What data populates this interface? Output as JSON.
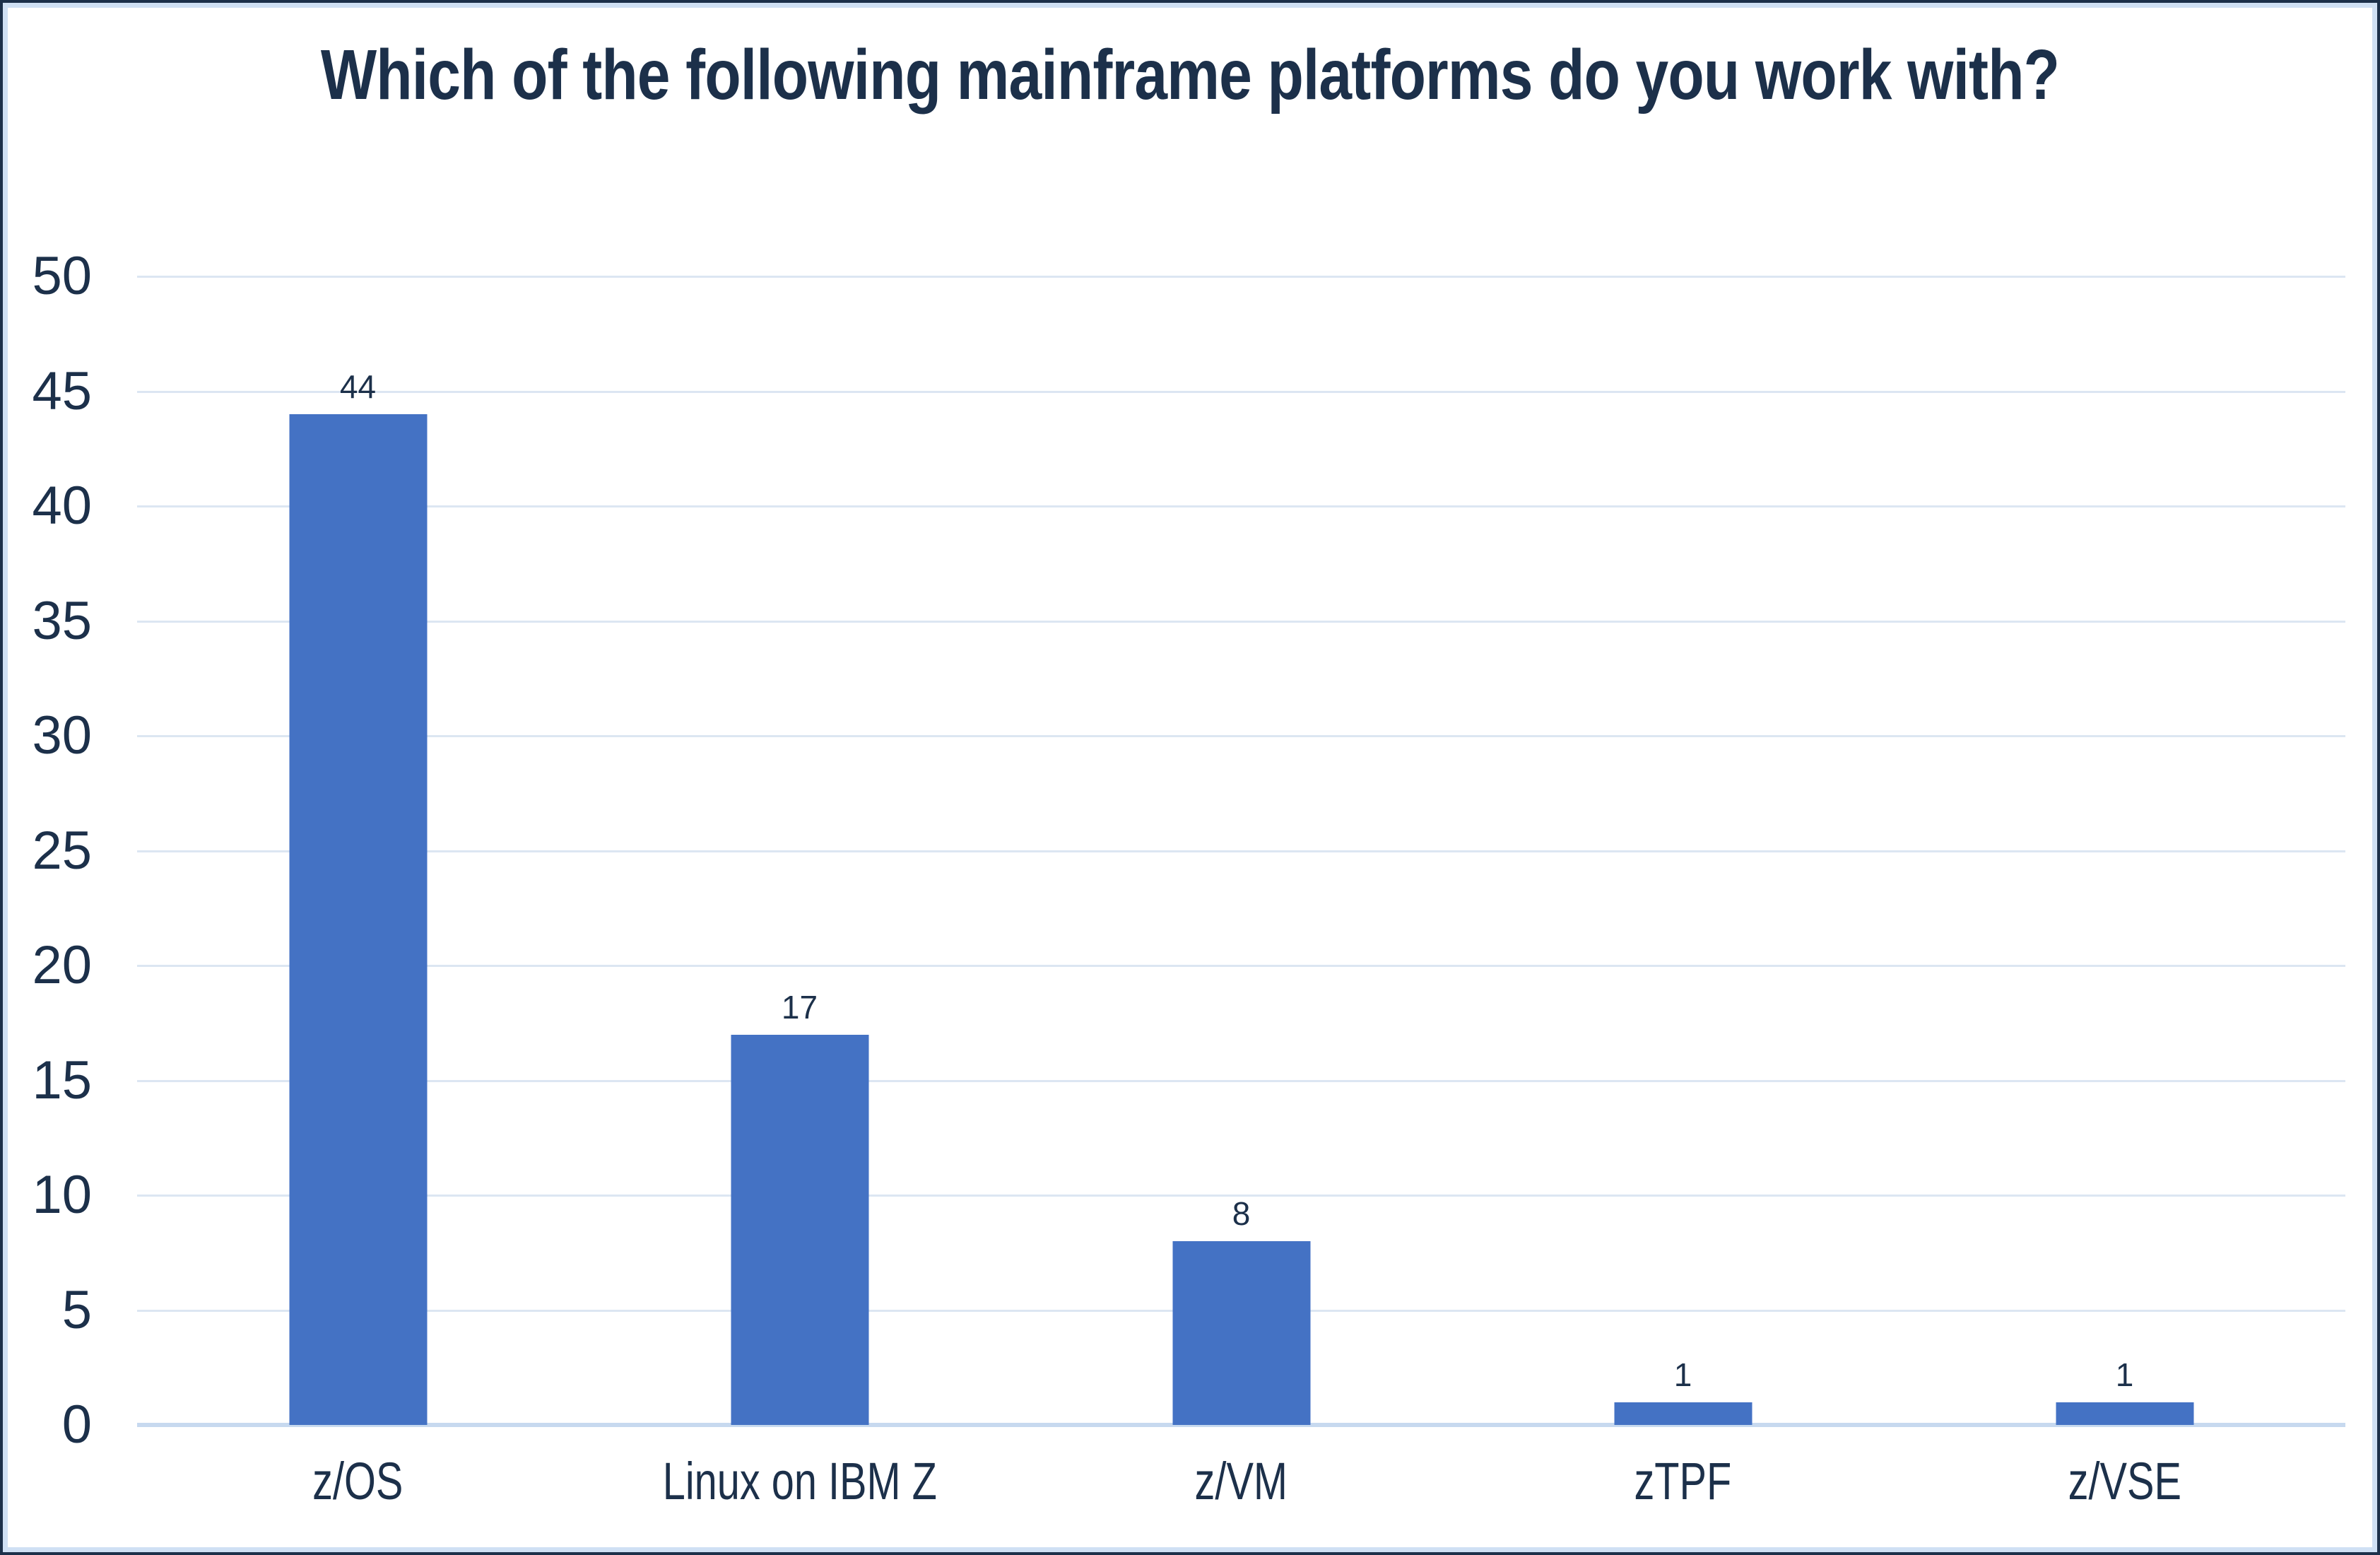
{
  "chart_data": {
    "type": "bar",
    "title": "Which of the following mainframe platforms do you work with?",
    "categories": [
      "z/OS",
      "Linux on IBM Z",
      "z/VM",
      "zTPF",
      "z/VSE"
    ],
    "values": [
      44,
      17,
      8,
      1,
      1
    ],
    "xlabel": "",
    "ylabel": "",
    "ylim": [
      0,
      50
    ],
    "ytick_step": 5,
    "yticks": [
      0,
      5,
      10,
      15,
      20,
      25,
      30,
      35,
      40,
      45,
      50
    ],
    "grid": "horizontal-on",
    "legend": "none",
    "data_labels_position": "above-bar",
    "colors": {
      "bar": "#4472c4",
      "text": "#1c304a",
      "gridline": "#dce6f2",
      "axis_line": "#c7d9ef",
      "background": "#ffffff",
      "frame_outer": "#1c304a",
      "frame_inner": "#cfe0f4"
    }
  }
}
